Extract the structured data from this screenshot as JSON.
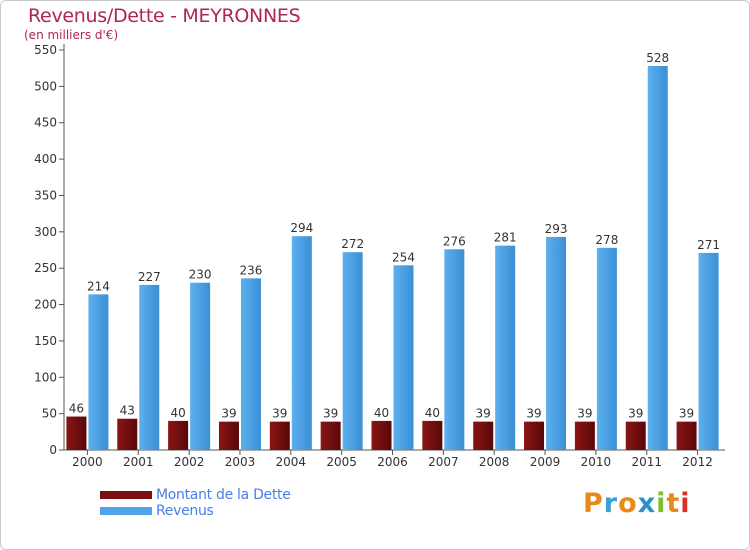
{
  "chart_data": {
    "type": "bar",
    "title": "Revenus/Dette - MEYRONNES",
    "subtitle": "(en milliers d'€)",
    "categories": [
      "2000",
      "2001",
      "2002",
      "2003",
      "2004",
      "2005",
      "2006",
      "2007",
      "2008",
      "2009",
      "2010",
      "2011",
      "2012"
    ],
    "series": [
      {
        "name": "Montant de la Dette",
        "color": "#7a1010",
        "values": [
          46,
          43,
          40,
          39,
          39,
          39,
          40,
          40,
          39,
          39,
          39,
          39,
          39
        ]
      },
      {
        "name": "Revenus",
        "color": "#4fa3e6",
        "values": [
          214,
          227,
          230,
          236,
          294,
          272,
          254,
          276,
          281,
          293,
          278,
          528,
          271
        ]
      }
    ],
    "yticks": [
      0,
      50,
      100,
      150,
      200,
      250,
      300,
      350,
      400,
      450,
      500,
      550
    ],
    "ylim": [
      0,
      550
    ],
    "grid": false,
    "legend_position": "bottom-left"
  },
  "branding": {
    "letters": [
      "P",
      "r",
      "o",
      "x",
      "i",
      "t",
      "i"
    ],
    "colors": [
      "#e8891c",
      "#3aa0d8",
      "#e8891c",
      "#2a8fd0",
      "#7bbf2c",
      "#e8891c",
      "#d8302a"
    ]
  }
}
